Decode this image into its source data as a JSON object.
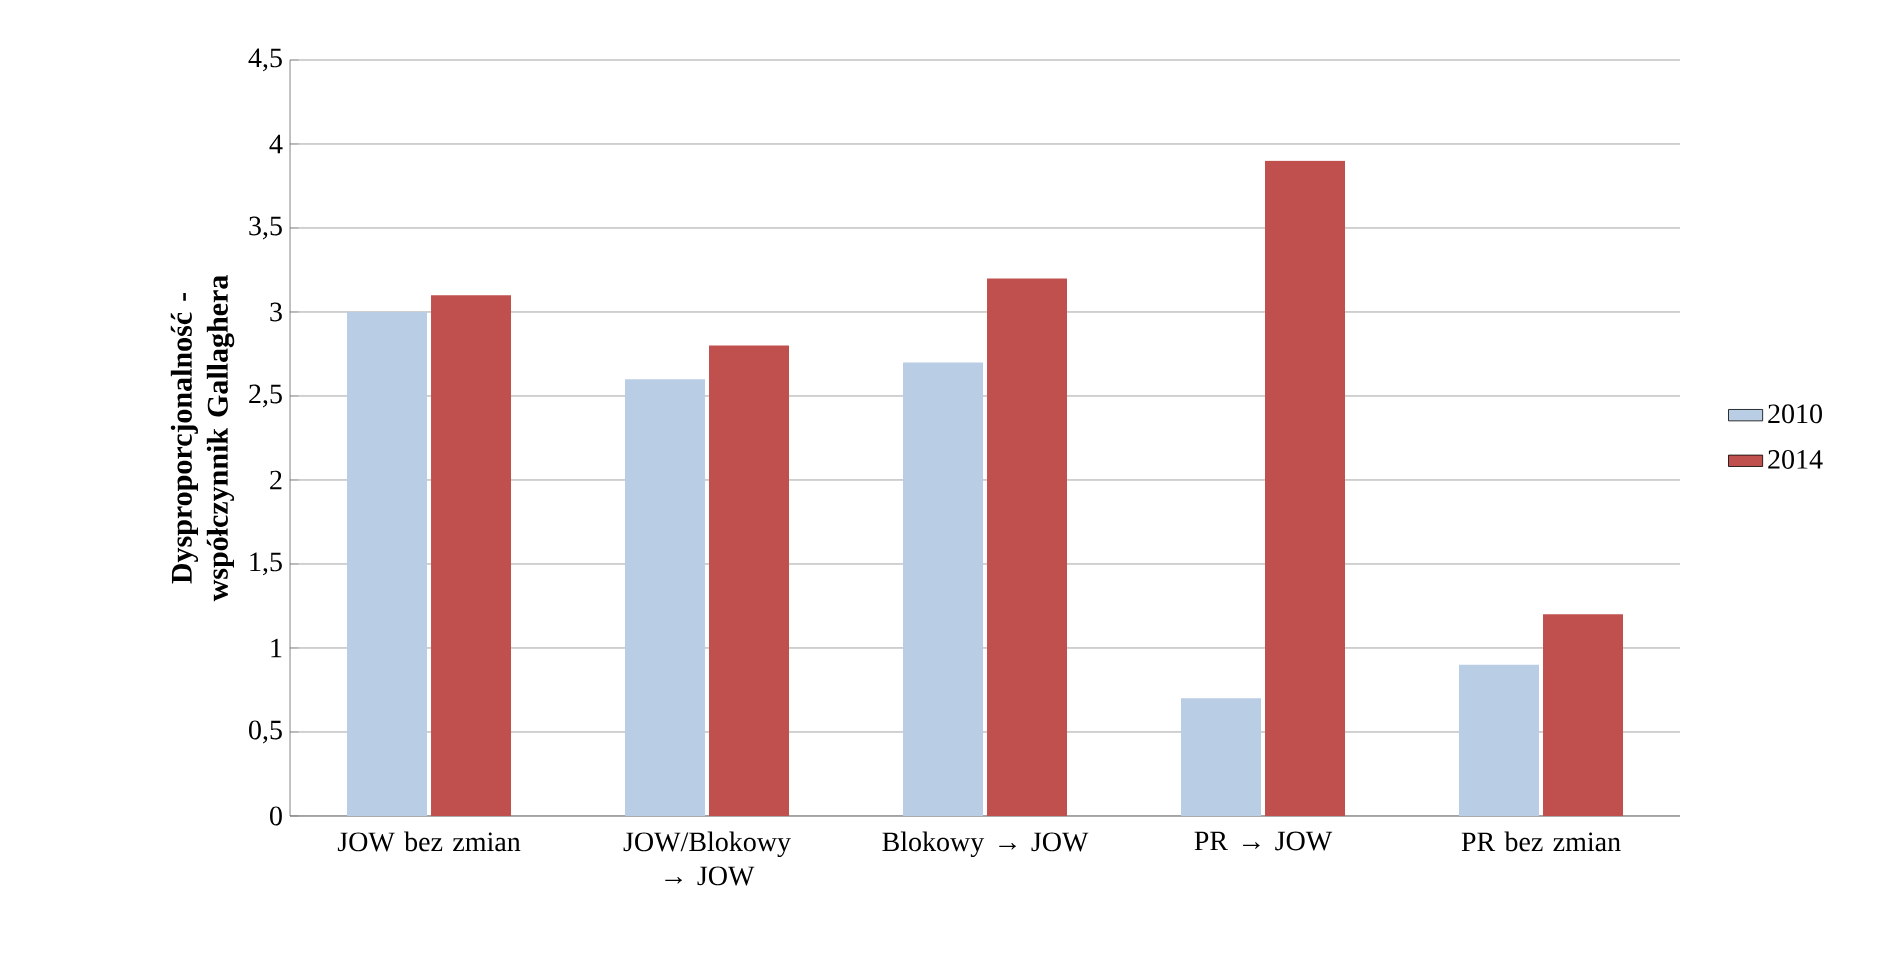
{
  "chart_data": {
    "type": "bar",
    "ylabel": "Dysproporcjonalność - współczynnik Gallaghera",
    "categories": [
      "JOW bez zmian",
      "JOW/Blokowy → JOW",
      "Blokowy → JOW",
      "PR → JOW",
      "PR bez zmian"
    ],
    "series": [
      {
        "name": "2010",
        "color": "#b9cde5",
        "values": [
          3.0,
          2.6,
          2.7,
          0.7,
          0.9
        ]
      },
      {
        "name": "2014",
        "color": "#c0504d",
        "values": [
          3.1,
          2.8,
          3.2,
          3.9,
          1.2
        ]
      }
    ],
    "ylim": [
      0,
      4.5
    ],
    "yticks": [
      0,
      {
        "value": 0.5,
        "label": "0,5"
      },
      1,
      {
        "value": 1.5,
        "label": "1,5"
      },
      2,
      {
        "value": 2.5,
        "label": "2,5"
      },
      3,
      {
        "value": 3.5,
        "label": "3,5"
      },
      4,
      {
        "value": 4.5,
        "label": "4,5"
      }
    ],
    "grid": "y",
    "legend": "right"
  }
}
